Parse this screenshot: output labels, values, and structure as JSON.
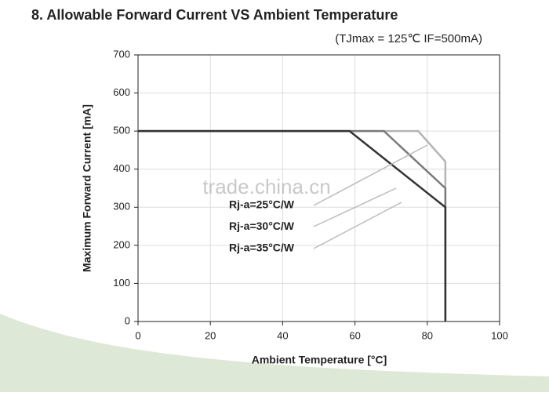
{
  "chart_data": {
    "type": "line",
    "title": "8. Allowable Forward Current  VS  Ambient Temperature",
    "subtitle": "(TJmax = 125℃ IF=500mA)",
    "x_label": "Ambient Temperature [°C]",
    "y_label": "Maximum Forward Current [mA]",
    "watermark": "trade.china.cn",
    "xlim": [
      0,
      100
    ],
    "xticks": [
      0,
      20,
      40,
      60,
      80,
      100
    ],
    "ylim": [
      0,
      700
    ],
    "yticks": [
      0,
      100,
      200,
      300,
      400,
      500,
      600,
      700
    ],
    "grid": true,
    "series": [
      {
        "name": "Rj-a=25°C/W",
        "color": "#b4b4b4",
        "x": [
          0,
          77.5,
          85,
          85
        ],
        "values": [
          500,
          500,
          420,
          0
        ]
      },
      {
        "name": "Rj-a=30°C/W",
        "color": "#7a7a7a",
        "x": [
          0,
          68,
          85,
          85
        ],
        "values": [
          500,
          500,
          350,
          0
        ]
      },
      {
        "name": "Rj-a=35°C/W",
        "color": "#333333",
        "x": [
          0,
          58.5,
          85,
          85
        ],
        "values": [
          500,
          500,
          300,
          0
        ]
      }
    ]
  }
}
